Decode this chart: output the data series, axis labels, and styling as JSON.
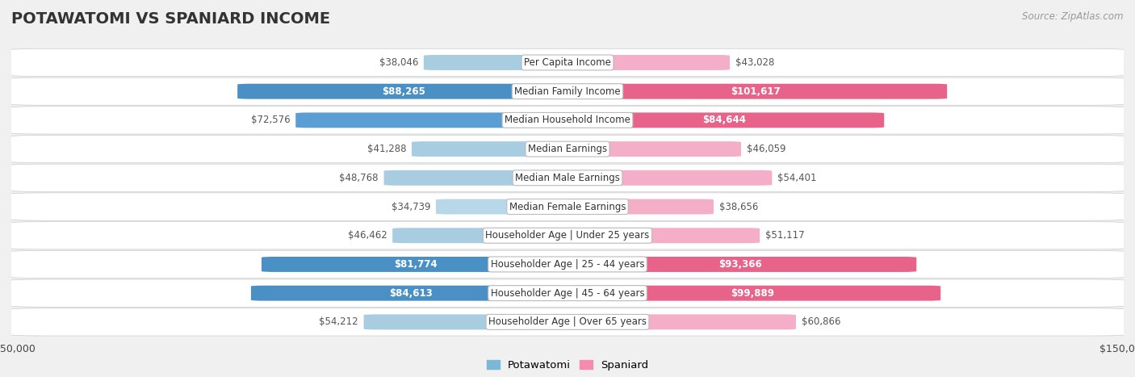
{
  "title": "POTAWATOMI VS SPANIARD INCOME",
  "source": "Source: ZipAtlas.com",
  "categories": [
    "Per Capita Income",
    "Median Family Income",
    "Median Household Income",
    "Median Earnings",
    "Median Male Earnings",
    "Median Female Earnings",
    "Householder Age | Under 25 years",
    "Householder Age | 25 - 44 years",
    "Householder Age | 45 - 64 years",
    "Householder Age | Over 65 years"
  ],
  "potawatomi": [
    38046,
    88265,
    72576,
    41288,
    48768,
    34739,
    46462,
    81774,
    84613,
    54212
  ],
  "spaniard": [
    43028,
    101617,
    84644,
    46059,
    54401,
    38656,
    51117,
    93366,
    99889,
    60866
  ],
  "potawatomi_labels": [
    "$38,046",
    "$88,265",
    "$72,576",
    "$41,288",
    "$48,768",
    "$34,739",
    "$46,462",
    "$81,774",
    "$84,613",
    "$54,212"
  ],
  "spaniard_labels": [
    "$43,028",
    "$101,617",
    "$84,644",
    "$46,059",
    "$54,401",
    "$38,656",
    "$51,117",
    "$93,366",
    "$99,889",
    "$60,866"
  ],
  "potawatomi_colors": [
    "#a8cce0",
    "#4a90c4",
    "#5b9ed4",
    "#a8cce0",
    "#a8cce0",
    "#b8d8ea",
    "#a8cce0",
    "#4a90c4",
    "#4a90c4",
    "#a8cce0"
  ],
  "spaniard_colors": [
    "#f4aec8",
    "#e8638a",
    "#e8638a",
    "#f4aec8",
    "#f4aec8",
    "#f4aec8",
    "#f4aec8",
    "#e8638a",
    "#e8638a",
    "#f4aec8"
  ],
  "potawatomi_label_inside_color": "white",
  "potawatomi_label_outside_color": "#555555",
  "spaniard_label_inside_color": "white",
  "spaniard_label_outside_color": "#555555",
  "bar_height": 0.52,
  "max_val": 150000,
  "bg_color": "#f0f0f0",
  "row_bg_light": "#f8f8f8",
  "row_bg_dark": "#e8e8e8",
  "inside_threshold": 75000,
  "title_fontsize": 14,
  "label_fontsize": 8.5,
  "cat_fontsize": 8.5,
  "source_fontsize": 8.5
}
